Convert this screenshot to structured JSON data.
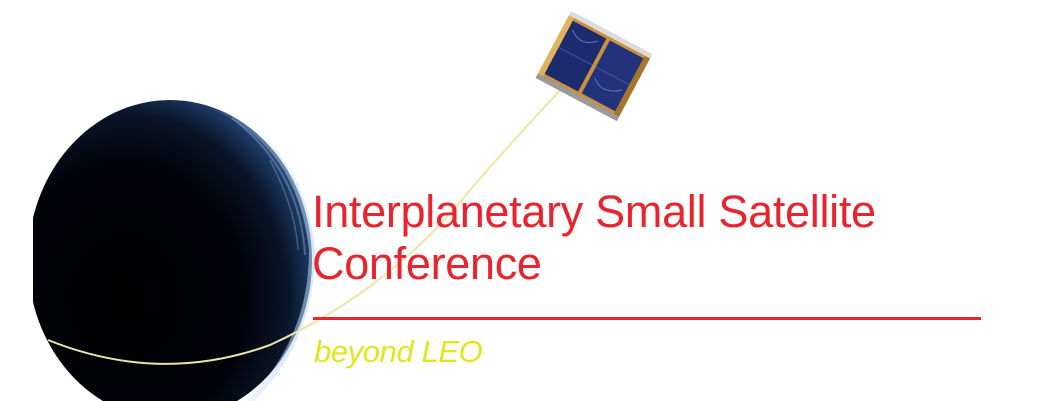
{
  "title": {
    "line1": "Interplanetary Small Satellite",
    "line2": "Conference"
  },
  "tagline": "beyond LEO",
  "colors": {
    "title": "#e8242e",
    "rule": "#e8242e",
    "tagline": "#e1e61c",
    "orbit_path": "#ece5a4",
    "planet_shadow": "#04050d",
    "planet_limb": "#3f6fa8",
    "satellite_panel": "#1c2a6e",
    "satellite_frame": "#c9913d"
  },
  "graphics": {
    "planet": "planet-crescent-graphic",
    "satellite": "cubesat-graphic",
    "trajectory": "orbit-path-graphic"
  }
}
